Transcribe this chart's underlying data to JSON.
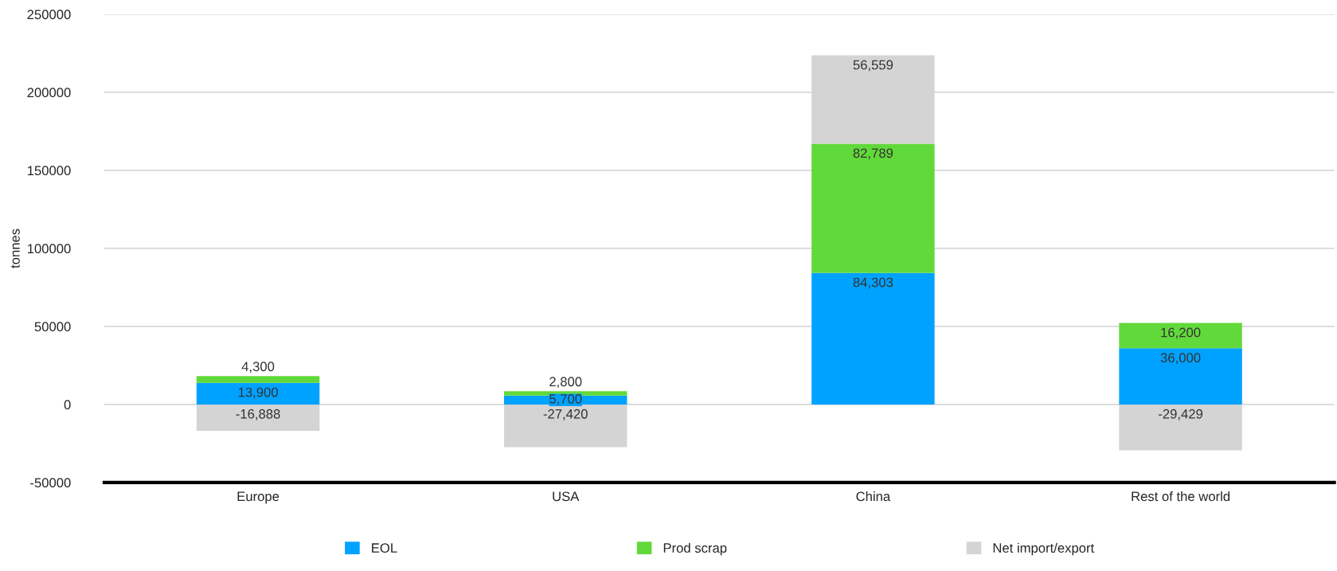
{
  "chart_data": {
    "type": "bar",
    "stacked": true,
    "ylabel": "tonnes",
    "categories": [
      "Europe",
      "USA",
      "China",
      "Rest of the world"
    ],
    "series": [
      {
        "name": "EOL",
        "color": "#00a2ff",
        "values": [
          13900,
          5700,
          84303,
          36000
        ],
        "value_labels": [
          "13,900",
          "5,700",
          "84,303",
          "36,000"
        ]
      },
      {
        "name": "Prod scrap",
        "color": "#62d93a",
        "values": [
          4300,
          2800,
          82789,
          16200
        ],
        "value_labels": [
          "4,300",
          "2,800",
          "82,789",
          "16,200"
        ]
      },
      {
        "name": "Net import/export",
        "color": "#d4d4d4",
        "values": [
          -16888,
          -27420,
          56559,
          -29429
        ],
        "value_labels": [
          "-16,888",
          "-27,420",
          "56,559",
          "-29,429"
        ]
      }
    ],
    "ylim": [
      -50000,
      250000
    ],
    "yticks": [
      -50000,
      0,
      50000,
      100000,
      150000,
      200000,
      250000
    ],
    "grid": "y",
    "legend": "bottom"
  }
}
